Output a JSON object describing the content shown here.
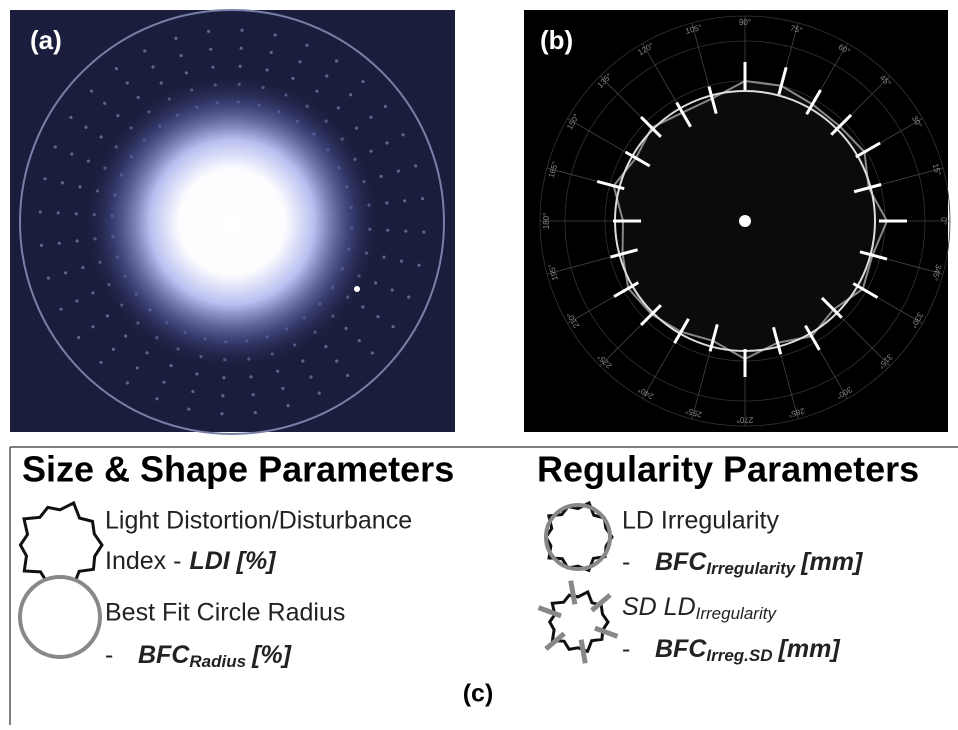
{
  "panels": {
    "a": {
      "label": "(a)"
    },
    "b": {
      "label": "(b)",
      "angle_labels": [
        "0°",
        "15°",
        "30°",
        "45°",
        "60°",
        "75°",
        "90°",
        "105°",
        "120°",
        "135°",
        "150°",
        "165°",
        "180°",
        "195°",
        "210°",
        "225°",
        "240°",
        "255°",
        "270°",
        "285°",
        "300°",
        "315°",
        "330°",
        "345°"
      ]
    },
    "c": {
      "label": "(c)",
      "size_shape": {
        "title": "Size & Shape Parameters",
        "ldi": {
          "line1": "Light Distortion/Disturbance",
          "line2": "Index -",
          "symbol": "LDI [%]"
        },
        "bfc": {
          "line1": "Best Fit Circle Radius",
          "dash": "-",
          "symbol": "BFC",
          "subscript": "Radius",
          "unit": "[%]"
        }
      },
      "regularity": {
        "title": "Regularity Parameters",
        "irr": {
          "line1": "LD Irregularity",
          "dash": "-",
          "symbol": "BFC",
          "subscript": "Irregularity",
          "unit": "[mm]"
        },
        "sd": {
          "line1": "SD LD",
          "line1_sub": "Irregularity",
          "dash": "-",
          "symbol": "BFC",
          "subscript": "Irreg.SD",
          "unit": "[mm]"
        }
      }
    }
  }
}
